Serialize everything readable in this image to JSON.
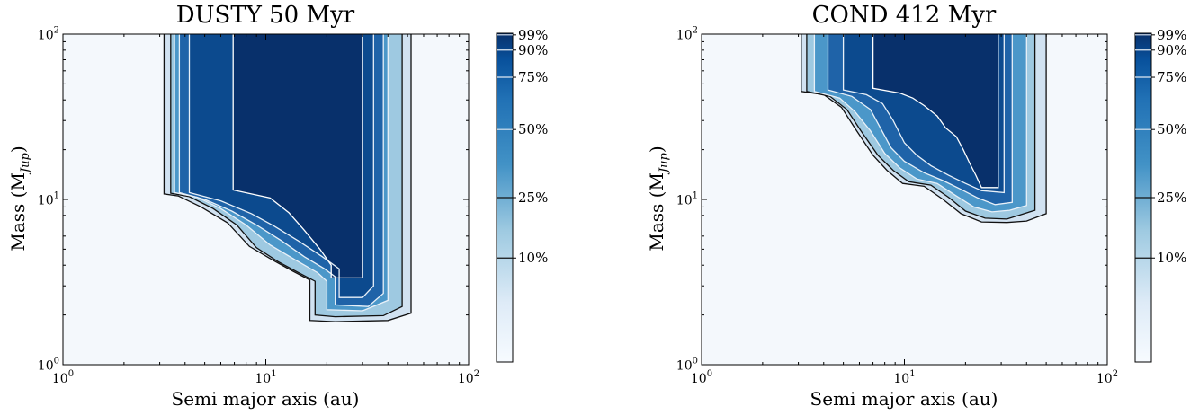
{
  "chart_data": [
    {
      "type": "heatmap",
      "title": "DUSTY 50 Myr",
      "xlabel": "Semi major axis (au)",
      "ylabel_main": "Mass (M",
      "ylabel_sub": "Jup",
      "ylabel_close": ")",
      "x_scale": "log",
      "y_scale": "log",
      "xlim": [
        1,
        100
      ],
      "ylim": [
        1,
        100
      ],
      "x_ticks": [
        {
          "base": "10",
          "exp": "0"
        },
        {
          "base": "10",
          "exp": "1"
        },
        {
          "base": "10",
          "exp": "2"
        }
      ],
      "y_ticks": [
        {
          "base": "10",
          "exp": "0"
        },
        {
          "base": "10",
          "exp": "1"
        },
        {
          "base": "10",
          "exp": "2"
        }
      ],
      "colorbar_labels": [
        "99%",
        "90%",
        "75%",
        "50%",
        "25%",
        "10%"
      ],
      "contour_levels": [
        10,
        25,
        50,
        75,
        90,
        99
      ],
      "contours": [
        {
          "level": 10,
          "points": [
            [
              3.15,
              100
            ],
            [
              3.15,
              10.8
            ],
            [
              3.7,
              10.5
            ],
            [
              4.8,
              9.0
            ],
            [
              6.5,
              7.2
            ],
            [
              8.3,
              5.2
            ],
            [
              10.8,
              4.3
            ],
            [
              13.5,
              3.7
            ],
            [
              16.5,
              3.25
            ],
            [
              16.5,
              1.85
            ],
            [
              22,
              1.82
            ],
            [
              40,
              1.85
            ],
            [
              52,
              2.05
            ],
            [
              52,
              100
            ]
          ]
        },
        {
          "level": 25,
          "points": [
            [
              3.4,
              100
            ],
            [
              3.4,
              10.9
            ],
            [
              4.2,
              10.4
            ],
            [
              5.5,
              8.8
            ],
            [
              7.2,
              7.0
            ],
            [
              9.0,
              5.1
            ],
            [
              11.5,
              4.2
            ],
            [
              14.5,
              3.6
            ],
            [
              17.5,
              3.2
            ],
            [
              17.5,
              2.0
            ],
            [
              22,
              1.95
            ],
            [
              38,
              1.98
            ],
            [
              47,
              2.25
            ],
            [
              47,
              100
            ]
          ]
        },
        {
          "level": 50,
          "points": [
            [
              3.55,
              100
            ],
            [
              3.55,
              11.0
            ],
            [
              4.6,
              10.3
            ],
            [
              6.0,
              8.8
            ],
            [
              8.0,
              7.0
            ],
            [
              10.5,
              5.3
            ],
            [
              14.0,
              4.3
            ],
            [
              18.0,
              3.6
            ],
            [
              20,
              3.2
            ],
            [
              20,
              2.15
            ],
            [
              30,
              2.12
            ],
            [
              40,
              2.45
            ],
            [
              40,
              100
            ]
          ]
        },
        {
          "level": 75,
          "points": [
            [
              3.75,
              100
            ],
            [
              3.75,
              11.0
            ],
            [
              5.0,
              10.0
            ],
            [
              6.8,
              8.5
            ],
            [
              9.0,
              7.0
            ],
            [
              12.0,
              5.6
            ],
            [
              15.5,
              4.5
            ],
            [
              19.5,
              3.8
            ],
            [
              22,
              3.4
            ],
            [
              22,
              2.3
            ],
            [
              32,
              2.25
            ],
            [
              38,
              2.7
            ],
            [
              38,
              100
            ]
          ]
        },
        {
          "level": 90,
          "points": [
            [
              4.2,
              100
            ],
            [
              4.2,
              11.0
            ],
            [
              6.0,
              9.8
            ],
            [
              8.5,
              8.2
            ],
            [
              11.0,
              6.9
            ],
            [
              14.5,
              5.6
            ],
            [
              19.0,
              4.5
            ],
            [
              23.0,
              3.8
            ],
            [
              23.0,
              2.55
            ],
            [
              30,
              2.55
            ],
            [
              34,
              3.0
            ],
            [
              34,
              100
            ]
          ]
        },
        {
          "level": 99,
          "points": [
            [
              6.9,
              100
            ],
            [
              6.9,
              11.4
            ],
            [
              10.5,
              10.2
            ],
            [
              13.0,
              8.3
            ],
            [
              15.5,
              6.5
            ],
            [
              18.5,
              5.0
            ],
            [
              21.0,
              4.0
            ],
            [
              21.0,
              3.35
            ],
            [
              30,
              3.35
            ],
            [
              30,
              100
            ]
          ]
        }
      ]
    },
    {
      "type": "heatmap",
      "title": "COND 412 Myr",
      "xlabel": "Semi major axis (au)",
      "ylabel_main": "Mass (M",
      "ylabel_sub": "Jup",
      "ylabel_close": ")",
      "x_scale": "log",
      "y_scale": "log",
      "xlim": [
        1,
        100
      ],
      "ylim": [
        1,
        100
      ],
      "x_ticks": [
        {
          "base": "10",
          "exp": "0"
        },
        {
          "base": "10",
          "exp": "1"
        },
        {
          "base": "10",
          "exp": "2"
        }
      ],
      "y_ticks": [
        {
          "base": "10",
          "exp": "0"
        },
        {
          "base": "10",
          "exp": "1"
        },
        {
          "base": "10",
          "exp": "2"
        }
      ],
      "colorbar_labels": [
        "99%",
        "90%",
        "75%",
        "50%",
        "25%",
        "10%"
      ],
      "contour_levels": [
        10,
        25,
        50,
        75,
        90,
        99
      ],
      "contours": [
        {
          "level": 10,
          "points": [
            [
              3.1,
              100
            ],
            [
              3.1,
              45
            ],
            [
              4.0,
              43
            ],
            [
              4.9,
              36
            ],
            [
              5.7,
              27
            ],
            [
              7.0,
              18.5
            ],
            [
              8.2,
              15
            ],
            [
              9.8,
              12.5
            ],
            [
              12.5,
              12.0
            ],
            [
              15.5,
              10.0
            ],
            [
              19.0,
              8.2
            ],
            [
              24.0,
              7.3
            ],
            [
              32,
              7.25
            ],
            [
              40,
              7.4
            ],
            [
              50,
              8.2
            ],
            [
              50,
              100
            ]
          ]
        },
        {
          "level": 25,
          "points": [
            [
              3.3,
              100
            ],
            [
              3.3,
              45
            ],
            [
              4.3,
              42
            ],
            [
              5.2,
              35
            ],
            [
              6.1,
              26
            ],
            [
              7.4,
              18.5
            ],
            [
              8.8,
              15
            ],
            [
              10.5,
              12.8
            ],
            [
              13.5,
              12.2
            ],
            [
              16.5,
              10.3
            ],
            [
              20,
              8.5
            ],
            [
              25,
              7.7
            ],
            [
              32,
              7.6
            ],
            [
              44,
              8.6
            ],
            [
              44,
              100
            ]
          ]
        },
        {
          "level": 50,
          "points": [
            [
              3.6,
              100
            ],
            [
              3.6,
              45
            ],
            [
              4.8,
              41
            ],
            [
              5.7,
              34
            ],
            [
              6.8,
              26
            ],
            [
              8.0,
              19
            ],
            [
              9.5,
              15.5
            ],
            [
              11.5,
              13.3
            ],
            [
              14.5,
              12.5
            ],
            [
              18,
              10.5
            ],
            [
              22,
              9.0
            ],
            [
              27,
              8.4
            ],
            [
              33,
              8.6
            ],
            [
              40,
              9.2
            ],
            [
              40,
              100
            ]
          ]
        },
        {
          "level": 75,
          "points": [
            [
              4.2,
              100
            ],
            [
              4.2,
              46
            ],
            [
              5.5,
              42
            ],
            [
              6.8,
              35
            ],
            [
              7.5,
              28
            ],
            [
              8.6,
              20.5
            ],
            [
              10,
              17
            ],
            [
              12.5,
              14.5
            ],
            [
              15.5,
              13
            ],
            [
              19,
              11.5
            ],
            [
              23,
              10.2
            ],
            [
              28,
              9.3
            ],
            [
              34,
              9.6
            ],
            [
              34,
              100
            ]
          ]
        },
        {
          "level": 90,
          "points": [
            [
              5.0,
              100
            ],
            [
              5.0,
              46
            ],
            [
              6.5,
              43
            ],
            [
              7.8,
              38
            ],
            [
              8.8,
              30
            ],
            [
              10,
              22
            ],
            [
              11.5,
              18.5
            ],
            [
              13.5,
              16
            ],
            [
              16.5,
              14
            ],
            [
              20,
              12.5
            ],
            [
              24,
              11.3
            ],
            [
              31,
              11.0
            ],
            [
              31,
              100
            ]
          ]
        },
        {
          "level": 99,
          "points": [
            [
              7.0,
              100
            ],
            [
              7.0,
              47
            ],
            [
              9.5,
              44
            ],
            [
              11.0,
              41
            ],
            [
              12.5,
              37
            ],
            [
              14.5,
              32
            ],
            [
              16.0,
              27
            ],
            [
              18.0,
              24
            ],
            [
              19.5,
              20
            ],
            [
              21,
              16.5
            ],
            [
              22.5,
              14
            ],
            [
              24,
              11.8
            ],
            [
              29,
              11.8
            ],
            [
              29,
              100
            ]
          ]
        }
      ]
    }
  ]
}
